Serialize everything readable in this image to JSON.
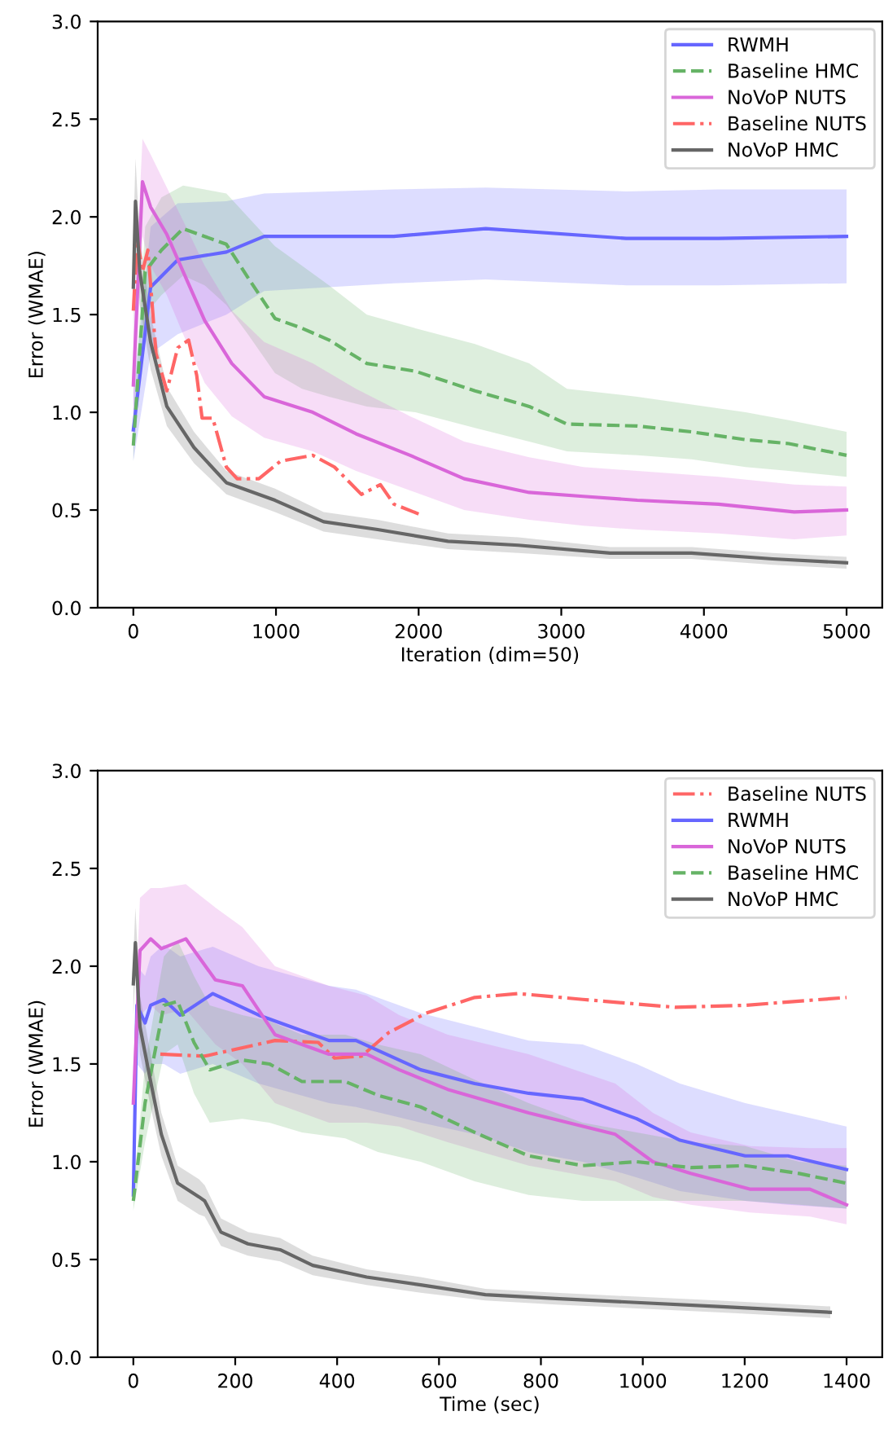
{
  "chart_data": [
    {
      "type": "line",
      "xlabel": "Iteration (dim=50)",
      "ylabel": "Error (WMAE)",
      "xlim": [
        -250,
        5250
      ],
      "ylim": [
        0,
        3
      ],
      "xticks": [
        0,
        1000,
        2000,
        3000,
        4000,
        5000
      ],
      "yticks": [
        {
          "value": 0,
          "label": "0.0"
        },
        {
          "value": 0.5,
          "label": "0.5"
        },
        {
          "value": 1,
          "label": "1.0"
        },
        {
          "value": 1.5,
          "label": "1.5"
        },
        {
          "value": 2,
          "label": "2.0"
        },
        {
          "value": 2.5,
          "label": "2.5"
        },
        {
          "value": 3,
          "label": "3.0"
        }
      ],
      "grid": false,
      "legend": "top right",
      "series": [
        {
          "name": "RWMH",
          "color": "#6666ff",
          "line_style": "solid",
          "x": [
            0,
            121,
            311,
            652,
            917,
            1826,
            2470,
            3455,
            4100,
            5000
          ],
          "values": [
            0.91,
            1.64,
            1.78,
            1.82,
            1.9,
            1.9,
            1.94,
            1.89,
            1.89,
            1.9
          ],
          "lower": [
            0.75,
            1.3,
            1.4,
            1.5,
            1.62,
            1.66,
            1.68,
            1.65,
            1.65,
            1.66
          ],
          "upper": [
            1.1,
            1.95,
            2.07,
            2.08,
            2.12,
            2.14,
            2.15,
            2.13,
            2.14,
            2.14
          ]
        },
        {
          "name": "Baseline HMC",
          "color": "#66b366",
          "line_style": "dashed",
          "x": [
            0,
            83,
            197,
            349,
            500,
            652,
            803,
            993,
            1183,
            1372,
            1637,
            1978,
            2395,
            2775,
            3040,
            3533,
            3913,
            4292,
            4595,
            5000
          ],
          "values": [
            0.83,
            1.72,
            1.83,
            1.94,
            1.9,
            1.86,
            1.69,
            1.48,
            1.43,
            1.37,
            1.25,
            1.21,
            1.11,
            1.03,
            0.94,
            0.93,
            0.9,
            0.86,
            0.84,
            0.78
          ],
          "lower": [
            0.75,
            1.5,
            1.6,
            1.7,
            1.65,
            1.55,
            1.4,
            1.2,
            1.12,
            1.08,
            1.03,
            1.0,
            0.92,
            0.85,
            0.8,
            0.78,
            0.76,
            0.72,
            0.7,
            0.67
          ],
          "upper": [
            0.95,
            1.95,
            2.1,
            2.16,
            2.14,
            2.12,
            2.0,
            1.85,
            1.75,
            1.65,
            1.5,
            1.43,
            1.35,
            1.25,
            1.12,
            1.08,
            1.04,
            1.0,
            0.96,
            0.9
          ]
        },
        {
          "name": "NoVoP NUTS",
          "color": "#d966d9",
          "line_style": "solid",
          "x": [
            0,
            64,
            121,
            235,
            349,
            500,
            690,
            917,
            1258,
            1561,
            1940,
            2319,
            2775,
            3154,
            3533,
            4102,
            4633,
            5000
          ],
          "values": [
            1.14,
            2.18,
            2.05,
            1.91,
            1.72,
            1.47,
            1.25,
            1.08,
            1.0,
            0.89,
            0.78,
            0.66,
            0.59,
            0.57,
            0.55,
            0.53,
            0.49,
            0.5
          ],
          "lower": [
            0.9,
            1.9,
            1.75,
            1.6,
            1.4,
            1.15,
            0.98,
            0.87,
            0.8,
            0.7,
            0.6,
            0.5,
            0.45,
            0.42,
            0.4,
            0.38,
            0.35,
            0.37
          ],
          "upper": [
            1.4,
            2.4,
            2.32,
            2.15,
            1.98,
            1.75,
            1.52,
            1.36,
            1.25,
            1.12,
            0.98,
            0.85,
            0.77,
            0.72,
            0.7,
            0.67,
            0.63,
            0.62
          ]
        },
        {
          "name": "Baseline NUTS",
          "color": "#ff6666",
          "line_style": "dashdot",
          "x": [
            0,
            27,
            64,
            102,
            159,
            235,
            311,
            387,
            444,
            482,
            557,
            652,
            728,
            880,
            1031,
            1258,
            1410,
            1599,
            1732,
            1827,
            2000
          ],
          "values": [
            1.52,
            1.89,
            1.72,
            1.83,
            1.3,
            1.11,
            1.33,
            1.37,
            1.19,
            0.97,
            0.97,
            0.72,
            0.66,
            0.66,
            0.75,
            0.78,
            0.72,
            0.58,
            0.63,
            0.53,
            0.48
          ]
        },
        {
          "name": "NoVoP HMC",
          "color": "#666666",
          "line_style": "solid",
          "x": [
            0,
            15,
            45,
            121,
            235,
            425,
            652,
            993,
            1334,
            1713,
            2206,
            2699,
            3343,
            3913,
            4482,
            5000
          ],
          "values": [
            1.64,
            2.08,
            1.72,
            1.36,
            1.03,
            0.82,
            0.64,
            0.55,
            0.44,
            0.4,
            0.34,
            0.32,
            0.28,
            0.28,
            0.25,
            0.23
          ],
          "lower": [
            1.4,
            1.85,
            1.55,
            1.22,
            0.93,
            0.74,
            0.58,
            0.49,
            0.39,
            0.35,
            0.3,
            0.28,
            0.25,
            0.25,
            0.22,
            0.2
          ],
          "upper": [
            1.9,
            2.3,
            1.9,
            1.5,
            1.13,
            0.9,
            0.7,
            0.61,
            0.49,
            0.45,
            0.38,
            0.36,
            0.31,
            0.31,
            0.28,
            0.26
          ]
        }
      ]
    },
    {
      "type": "line",
      "xlabel": "Time (sec)",
      "ylabel": "Error (WMAE)",
      "xlim": [
        -70,
        1470
      ],
      "ylim": [
        0,
        3
      ],
      "xticks": [
        0,
        200,
        400,
        600,
        800,
        1000,
        1200,
        1400
      ],
      "yticks": [
        {
          "value": 0,
          "label": "0.0"
        },
        {
          "value": 0.5,
          "label": "0.5"
        },
        {
          "value": 1,
          "label": "1.0"
        },
        {
          "value": 1.5,
          "label": "1.5"
        },
        {
          "value": 2,
          "label": "2.0"
        },
        {
          "value": 2.5,
          "label": "2.5"
        },
        {
          "value": 3,
          "label": "3.0"
        }
      ],
      "grid": false,
      "legend": "top right",
      "series": [
        {
          "name": "Baseline NUTS",
          "color": "#ff6666",
          "line_style": "dashdot",
          "x": [
            53,
            140,
            278,
            363,
            395,
            448,
            501,
            575,
            670,
            755,
            882,
            1063,
            1201,
            1400
          ],
          "values": [
            1.55,
            1.54,
            1.62,
            1.61,
            1.53,
            1.54,
            1.66,
            1.76,
            1.84,
            1.86,
            1.83,
            1.79,
            1.8,
            1.84
          ]
        },
        {
          "name": "RWMH",
          "color": "#6666ff",
          "line_style": "solid",
          "x": [
            0,
            7,
            23,
            34,
            60,
            92,
            156,
            246,
            384,
            437,
            564,
            670,
            776,
            882,
            988,
            1073,
            1201,
            1285,
            1400
          ],
          "values": [
            0.83,
            1.8,
            1.71,
            1.8,
            1.83,
            1.75,
            1.86,
            1.75,
            1.62,
            1.62,
            1.47,
            1.4,
            1.35,
            1.32,
            1.22,
            1.11,
            1.03,
            1.03,
            0.96
          ],
          "lower": [
            0.78,
            1.5,
            1.45,
            1.5,
            1.5,
            1.45,
            1.5,
            1.4,
            1.3,
            1.28,
            1.2,
            1.14,
            1.05,
            1.0,
            0.92,
            0.85,
            0.8,
            0.78,
            0.76
          ],
          "upper": [
            0.9,
            2.0,
            1.95,
            2.05,
            2.11,
            2.05,
            2.1,
            2.0,
            1.9,
            1.88,
            1.76,
            1.69,
            1.62,
            1.6,
            1.5,
            1.4,
            1.3,
            1.25,
            1.18
          ]
        },
        {
          "name": "NoVoP NUTS",
          "color": "#d966d9",
          "line_style": "solid",
          "x": [
            0,
            13,
            34,
            55,
            103,
            161,
            214,
            278,
            384,
            458,
            522,
            617,
            776,
            946,
            1020,
            1094,
            1210,
            1328,
            1400
          ],
          "values": [
            1.3,
            2.08,
            2.14,
            2.09,
            2.14,
            1.93,
            1.9,
            1.65,
            1.55,
            1.55,
            1.47,
            1.37,
            1.25,
            1.14,
            1.0,
            0.94,
            0.86,
            0.86,
            0.78
          ],
          "lower": [
            1.1,
            1.75,
            1.8,
            1.75,
            1.78,
            1.6,
            1.5,
            1.3,
            1.2,
            1.2,
            1.18,
            1.1,
            0.98,
            0.9,
            0.82,
            0.78,
            0.74,
            0.72,
            0.68
          ],
          "upper": [
            1.5,
            2.35,
            2.4,
            2.4,
            2.42,
            2.3,
            2.2,
            2.0,
            1.9,
            1.85,
            1.75,
            1.65,
            1.55,
            1.4,
            1.25,
            1.15,
            1.08,
            1.07,
            1.07
          ]
        },
        {
          "name": "Baseline HMC",
          "color": "#66b366",
          "line_style": "dashed",
          "x": [
            0,
            23,
            60,
            87,
            119,
            150,
            214,
            267,
            331,
            416,
            480,
            564,
            670,
            776,
            882,
            988,
            1094,
            1201,
            1307,
            1400
          ],
          "values": [
            0.8,
            1.3,
            1.8,
            1.82,
            1.61,
            1.47,
            1.52,
            1.5,
            1.41,
            1.41,
            1.34,
            1.28,
            1.15,
            1.03,
            0.98,
            1.0,
            0.97,
            0.98,
            0.94,
            0.89
          ],
          "lower": [
            0.75,
            1.1,
            1.55,
            1.6,
            1.35,
            1.2,
            1.22,
            1.2,
            1.15,
            1.12,
            1.05,
            1.0,
            0.9,
            0.83,
            0.8,
            0.8,
            0.8,
            0.8,
            0.78,
            0.76
          ],
          "upper": [
            0.85,
            1.5,
            2.05,
            2.13,
            1.95,
            1.8,
            1.75,
            1.72,
            1.65,
            1.65,
            1.6,
            1.55,
            1.42,
            1.3,
            1.2,
            1.15,
            1.1,
            1.08,
            1.0,
            0.98
          ]
        },
        {
          "name": "NoVoP HMC",
          "color": "#666666",
          "line_style": "solid",
          "x": [
            0,
            4,
            13,
            34,
            55,
            87,
            129,
            140,
            172,
            225,
            288,
            352,
            458,
            564,
            691,
            829,
            988,
            1147,
            1368
          ],
          "values": [
            1.91,
            2.12,
            1.69,
            1.41,
            1.14,
            0.89,
            0.82,
            0.8,
            0.64,
            0.58,
            0.55,
            0.47,
            0.41,
            0.37,
            0.32,
            0.3,
            0.28,
            0.26,
            0.23
          ],
          "lower": [
            1.75,
            1.95,
            1.55,
            1.28,
            1.03,
            0.8,
            0.73,
            0.72,
            0.57,
            0.52,
            0.49,
            0.42,
            0.37,
            0.33,
            0.29,
            0.27,
            0.25,
            0.23,
            0.2
          ],
          "upper": [
            2.05,
            2.3,
            1.85,
            1.55,
            1.25,
            0.98,
            0.91,
            0.88,
            0.71,
            0.64,
            0.61,
            0.52,
            0.45,
            0.41,
            0.35,
            0.33,
            0.31,
            0.29,
            0.26
          ]
        }
      ]
    }
  ]
}
